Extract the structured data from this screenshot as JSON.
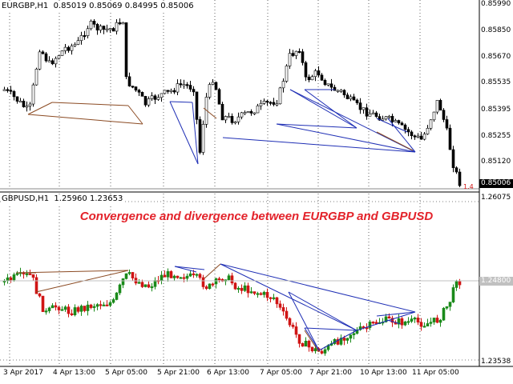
{
  "colors": {
    "bull_candle": "#1a8a1a",
    "bear_candle": "#d01515",
    "candle_top": "#000000",
    "trendline_blue": "#1f2fb5",
    "trendline_brown": "#8b4a22",
    "grid": "#000000",
    "annotation": "#e3222a",
    "current_price_bg": "#000000",
    "current_price_bg_bottom": "#c0c0c0"
  },
  "top_panel": {
    "symbol_header": "EURGBP,H1  0.85019 0.85069 0.84995 0.85006",
    "price_labels": [
      "0.85990",
      "0.85850",
      "0.85670",
      "0.85535",
      "0.85395",
      "0.85255",
      "0.85120"
    ],
    "current_price": "0.85006",
    "small_marker": "1.4"
  },
  "bottom_panel": {
    "symbol_header": "GBPUSD,H1  1.25960 1.23653",
    "price_labels": [
      "1.26075",
      "1.23538"
    ],
    "current_price": "1.24800"
  },
  "annotation": "Convergence and divergence between EURGBP and GBPUSD",
  "time_axis": [
    "3 Apr 2017",
    "4 Apr 13:00",
    "5 Apr 05:00",
    "5 Apr 21:00",
    "6 Apr 13:00",
    "7 Apr 05:00",
    "7 Apr 21:00",
    "10 Apr 13:00",
    "11 Apr 05:00"
  ]
}
